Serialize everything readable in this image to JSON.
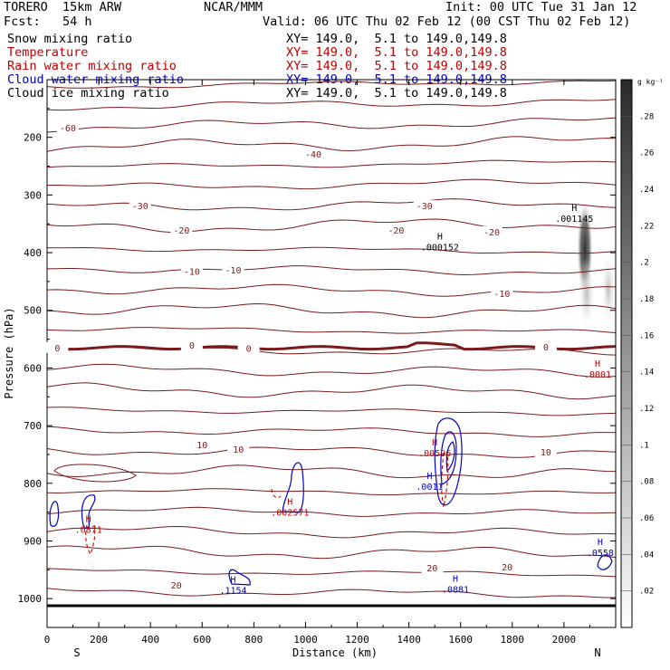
{
  "header": {
    "model": "TORERO  15km ARW",
    "center": "NCAR/MMM",
    "init": "Init: 00 UTC Tue 31 Jan 12",
    "fcst": "Fcst:   54 h",
    "valid": "Valid: 06 UTC Thu 02 Feb 12 (00 CST Thu 02 Feb 12)"
  },
  "legend": [
    {
      "label": "Snow mixing ratio",
      "xy": "XY= 149.0,  5.1 to 149.0,149.8",
      "color": "#000000"
    },
    {
      "label": "Temperature",
      "xy": "XY= 149.0,  5.1 to 149.0,149.8",
      "color": "#c00000"
    },
    {
      "label": "Rain water mixing ratio",
      "xy": "XY= 149.0,  5.1 to 149.0,149.8",
      "color": "#c00000"
    },
    {
      "label": "Cloud water mixing ratio",
      "xy": "XY= 149.0,  5.1 to 149.0,149.8",
      "color": "#0000c0"
    },
    {
      "label": "Cloud ice mixing ratio",
      "xy": "XY= 149.0,  5.1 to 149.0,149.8",
      "color": "#000000"
    }
  ],
  "chart_data": {
    "type": "cross-section contour",
    "xlabel": "Distance (km)",
    "ylabel": "Pressure (hPa)",
    "xlim": [
      0,
      2200
    ],
    "ylim": [
      1050,
      100
    ],
    "xticks": [
      "0",
      "200",
      "400",
      "600",
      "800",
      "1000",
      "1200",
      "1400",
      "1600",
      "1800",
      "2000"
    ],
    "yticks": [
      "200",
      "300",
      "400",
      "500",
      "600",
      "700",
      "800",
      "900",
      "1000"
    ],
    "left_end": "S",
    "right_end": "N",
    "colorbar": {
      "unit": "g kg⁻¹",
      "ticks": [
        ".02",
        ".04",
        ".06",
        ".08",
        ".1",
        ".12",
        ".14",
        ".16",
        ".18",
        ".2",
        ".22",
        ".24",
        ".26",
        ".28"
      ]
    },
    "temperature_labels": [
      {
        "text": "-60",
        "x": 80,
        "p": 185
      },
      {
        "text": "-40",
        "x": 1030,
        "p": 230
      },
      {
        "text": "-30",
        "x": 360,
        "p": 320
      },
      {
        "text": "-30",
        "x": 1460,
        "p": 320
      },
      {
        "text": "-20",
        "x": 520,
        "p": 362
      },
      {
        "text": "-20",
        "x": 1350,
        "p": 362
      },
      {
        "text": "-20",
        "x": 1720,
        "p": 365
      },
      {
        "text": "-10",
        "x": 560,
        "p": 434
      },
      {
        "text": "-10",
        "x": 720,
        "p": 431
      },
      {
        "text": "-10",
        "x": 1760,
        "p": 472
      },
      {
        "text": "0",
        "x": 40,
        "p": 566
      },
      {
        "text": "0",
        "x": 560,
        "p": 562
      },
      {
        "text": "0",
        "x": 780,
        "p": 567
      },
      {
        "text": "0",
        "x": 1930,
        "p": 565
      },
      {
        "text": "10",
        "x": 600,
        "p": 734
      },
      {
        "text": "10",
        "x": 740,
        "p": 742
      },
      {
        "text": "10",
        "x": 1930,
        "p": 747
      },
      {
        "text": "20",
        "x": 500,
        "p": 978
      },
      {
        "text": "20",
        "x": 1490,
        "p": 948
      },
      {
        "text": "20",
        "x": 1780,
        "p": 946
      }
    ],
    "maxima": [
      {
        "text": ".001145",
        "x": 2040,
        "p": 340,
        "color": "#000000"
      },
      {
        "text": ".000152",
        "x": 1520,
        "p": 390,
        "color": "#000000"
      },
      {
        "text": ".0001",
        "x": 2130,
        "p": 610,
        "color": "#c00000"
      },
      {
        "text": ".00596",
        "x": 1500,
        "p": 747,
        "color": "#c00000"
      },
      {
        "text": ".0011",
        "x": 1480,
        "p": 805,
        "color": "#0000c0"
      },
      {
        "text": ".002571",
        "x": 940,
        "p": 850,
        "color": "#c00000"
      },
      {
        "text": ".0871",
        "x": 160,
        "p": 880,
        "color": "#c00000"
      },
      {
        "text": ".1154",
        "x": 720,
        "p": 985,
        "color": "#0000c0"
      },
      {
        "text": ".0881",
        "x": 1580,
        "p": 983,
        "color": "#0000c0"
      },
      {
        "text": ".0558",
        "x": 2140,
        "p": 920,
        "color": "#0000c0"
      }
    ]
  }
}
